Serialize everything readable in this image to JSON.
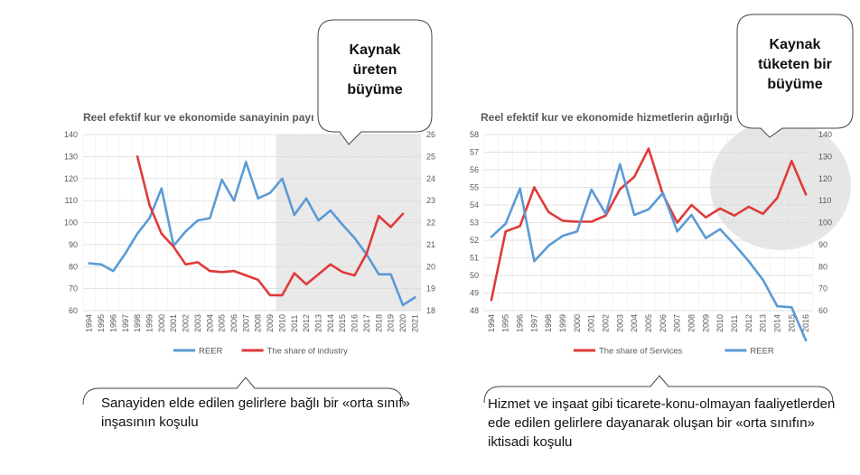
{
  "chart_data": [
    {
      "type": "line",
      "title": "Reel efektif kur ve ekonomide sanayinin payı",
      "x": [
        "1994",
        "1995",
        "1996",
        "1997",
        "1998",
        "1999",
        "2000",
        "2001",
        "2002",
        "2003",
        "2004",
        "2005",
        "2006",
        "2007",
        "2008",
        "2009",
        "2010",
        "2011",
        "2012",
        "2013",
        "2014",
        "2015",
        "2016",
        "2017",
        "2018",
        "2019",
        "2020",
        "2021"
      ],
      "ylim_left": [
        60,
        140
      ],
      "ylim_right": [
        18,
        26
      ],
      "left_ticks": [
        60,
        70,
        80,
        90,
        100,
        110,
        120,
        130,
        140
      ],
      "right_ticks": [
        18,
        19,
        20,
        21,
        22,
        23,
        24,
        25,
        26
      ],
      "shaded_region": [
        "2010",
        "2021"
      ],
      "legend_position": "bottom",
      "series": [
        {
          "name": "REER",
          "axis": "left",
          "color": "#5b9bd5",
          "values": [
            81.5,
            81,
            78,
            86,
            95,
            102,
            115.5,
            89.5,
            96,
            101,
            102,
            119.5,
            110,
            127.5,
            111,
            113.5,
            120,
            103.5,
            111,
            101,
            105.5,
            99,
            93,
            85.5,
            76.5,
            76.5,
            62.5,
            66
          ]
        },
        {
          "name": "The share of industry",
          "axis": "right",
          "color": "#e03a3a",
          "values": [
            null,
            null,
            null,
            null,
            25,
            22.8,
            21.5,
            20.9,
            20.1,
            20.2,
            19.8,
            19.75,
            19.8,
            19.6,
            19.4,
            18.7,
            18.7,
            19.7,
            19.2,
            19.65,
            20.1,
            19.75,
            19.6,
            20.6,
            22.3,
            21.8,
            22.4,
            null
          ]
        }
      ],
      "callout": [
        "Kaynak",
        "üreten",
        "büyüme"
      ],
      "caption": "Sanayiden elde edilen gelirlere bağlı bir «orta sınıf» inşasının koşulu"
    },
    {
      "type": "line",
      "title": "Reel efektif kur ve ekonomide hizmetlerin ağırlığı",
      "x": [
        "1994",
        "1995",
        "1996",
        "1997",
        "1998",
        "1999",
        "2000",
        "2001",
        "2002",
        "2003",
        "2004",
        "2005",
        "2006",
        "2007",
        "2008",
        "2009",
        "2010",
        "2011",
        "2012",
        "2013",
        "2014",
        "2015",
        "2016"
      ],
      "ylim_left": [
        48,
        58
      ],
      "ylim_right": [
        60,
        140
      ],
      "left_ticks": [
        48,
        49,
        50,
        51,
        52,
        53,
        54,
        55,
        56,
        57,
        58
      ],
      "right_ticks": [
        60,
        70,
        80,
        90,
        100,
        110,
        120,
        130,
        140
      ],
      "highlight": "ellipse over 2012-2016",
      "legend_position": "bottom",
      "series": [
        {
          "name": "The share of Services",
          "axis": "left",
          "color": "#e03a3a",
          "values": [
            48.6,
            52.5,
            52.8,
            55,
            53.6,
            53.1,
            53.05,
            53.05,
            53.4,
            54.9,
            55.6,
            57.2,
            54.6,
            53,
            54,
            53.3,
            53.8,
            53.4,
            53.9,
            53.5,
            54.4,
            56.5,
            54.6
          ]
        },
        {
          "name": "REER",
          "axis": "right",
          "color": "#5b9bd5",
          "values": [
            93.5,
            99.5,
            115.5,
            82.5,
            89.5,
            94,
            96,
            115,
            104,
            126.5,
            103.5,
            106,
            113.5,
            96,
            103.5,
            93,
            97,
            90,
            82.5,
            74,
            62,
            61.5,
            46.5
          ]
        }
      ],
      "callout": [
        "Kaynak",
        "tüketen bir",
        "büyüme"
      ],
      "caption": "Hizmet ve inşaat gibi ticarete-konu-olmayan faaliyetlerden ede edilen gelirlere dayanarak oluşan bir  «orta sınıfın» iktisadi koşulu"
    }
  ]
}
